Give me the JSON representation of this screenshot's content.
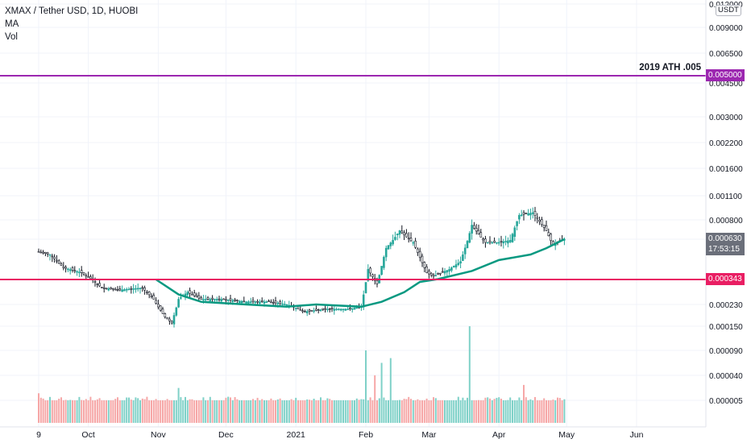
{
  "header": {
    "symbol_line": "XMAX / Tether USD, 1D, HUOBI",
    "indicator_ma": "MA",
    "indicator_vol": "Vol"
  },
  "price_scale_unit": "USDT",
  "annotations": {
    "ath_label": "2019 ATH .005",
    "ath_value": "0.005000",
    "support_value": "0.000343",
    "last_price": "0.000630",
    "countdown": "17:53:15"
  },
  "colors": {
    "up": "#26a69a",
    "down": "#131722",
    "ma": "#089981",
    "ath_line": "#9c27b0",
    "support_line": "#e91e63",
    "vol_up": "#7fd1c8",
    "vol_down": "#f6a7a7",
    "last_price_bg": "#6b6f7a"
  },
  "chart_data": {
    "type": "candlestick",
    "y_scale": "log",
    "y_ticks": [
      "0.012000",
      "0.009000",
      "0.006500",
      "0.004500",
      "0.003000",
      "0.002200",
      "0.001600",
      "0.001100",
      "0.000800",
      "0.000630",
      "0.000343",
      "0.000230",
      "0.000150",
      "0.000090",
      "0.000040",
      "0.000005"
    ],
    "x_ticks": [
      "9",
      "Oct",
      "Nov",
      "Dec",
      "2021",
      "Feb",
      "Mar",
      "Apr",
      "May",
      "Jun"
    ],
    "horizontal_lines": [
      {
        "value": 0.005,
        "label": "2019 ATH .005"
      },
      {
        "value": 0.000343
      }
    ],
    "price_path": [
      [
        "2020-09-09",
        0.00052
      ],
      [
        "2020-09-14",
        0.0005
      ],
      [
        "2020-09-20",
        0.00041
      ],
      [
        "2020-09-28",
        0.00038
      ],
      [
        "2020-10-03",
        0.00034
      ],
      [
        "2020-10-07",
        0.0003
      ],
      [
        "2020-10-15",
        0.00029
      ],
      [
        "2020-10-25",
        0.0003
      ],
      [
        "2020-10-30",
        0.00025
      ],
      [
        "2020-11-04",
        0.00018
      ],
      [
        "2020-11-07",
        0.00016
      ],
      [
        "2020-11-10",
        0.00025
      ],
      [
        "2020-11-14",
        0.00028
      ],
      [
        "2020-11-20",
        0.00025
      ],
      [
        "2020-11-30",
        0.00025
      ],
      [
        "2020-12-10",
        0.00024
      ],
      [
        "2020-12-20",
        0.00024
      ],
      [
        "2020-12-28",
        0.00023
      ],
      [
        "2021-01-05",
        0.0002
      ],
      [
        "2021-01-15",
        0.00021
      ],
      [
        "2021-01-25",
        0.00021
      ],
      [
        "2021-01-30",
        0.00022
      ],
      [
        "2021-02-02",
        0.0004
      ],
      [
        "2021-02-06",
        0.00032
      ],
      [
        "2021-02-10",
        0.00055
      ],
      [
        "2021-02-16",
        0.0007
      ],
      [
        "2021-02-22",
        0.0006
      ],
      [
        "2021-02-28",
        0.00038
      ],
      [
        "2021-03-03",
        0.00036
      ],
      [
        "2021-03-10",
        0.0004
      ],
      [
        "2021-03-15",
        0.00045
      ],
      [
        "2021-03-20",
        0.00075
      ],
      [
        "2021-03-26",
        0.0006
      ],
      [
        "2021-04-01",
        0.0006
      ],
      [
        "2021-04-06",
        0.00062
      ],
      [
        "2021-04-10",
        0.00085
      ],
      [
        "2021-04-16",
        0.00088
      ],
      [
        "2021-04-22",
        0.0007
      ],
      [
        "2021-04-25",
        0.00058
      ],
      [
        "2021-04-30",
        0.00063
      ]
    ],
    "moving_average": [
      [
        "2020-10-31",
        0.000343
      ],
      [
        "2020-11-10",
        0.00027
      ],
      [
        "2020-11-20",
        0.00024
      ],
      [
        "2020-12-10",
        0.00023
      ],
      [
        "2020-12-28",
        0.00022
      ],
      [
        "2021-01-10",
        0.00023
      ],
      [
        "2021-01-30",
        0.00022
      ],
      [
        "2021-02-08",
        0.00024
      ],
      [
        "2021-02-18",
        0.00028
      ],
      [
        "2021-02-25",
        0.00033
      ],
      [
        "2021-03-05",
        0.000345
      ],
      [
        "2021-03-20",
        0.00039
      ],
      [
        "2021-04-01",
        0.00046
      ],
      [
        "2021-04-15",
        0.0005
      ],
      [
        "2021-04-22",
        0.00055
      ],
      [
        "2021-04-30",
        0.00063
      ]
    ],
    "volume_peaks": [
      [
        "2020-09-09",
        9e-06
      ],
      [
        "2020-11-10",
        1.4e-05
      ],
      [
        "2021-02-01",
        9e-05
      ],
      [
        "2021-02-05",
        4e-05
      ],
      [
        "2021-02-08",
        6e-05
      ],
      [
        "2021-02-12",
        7e-05
      ],
      [
        "2021-03-19",
        0.00015
      ],
      [
        "2021-04-12",
        1.8e-05
      ]
    ]
  }
}
